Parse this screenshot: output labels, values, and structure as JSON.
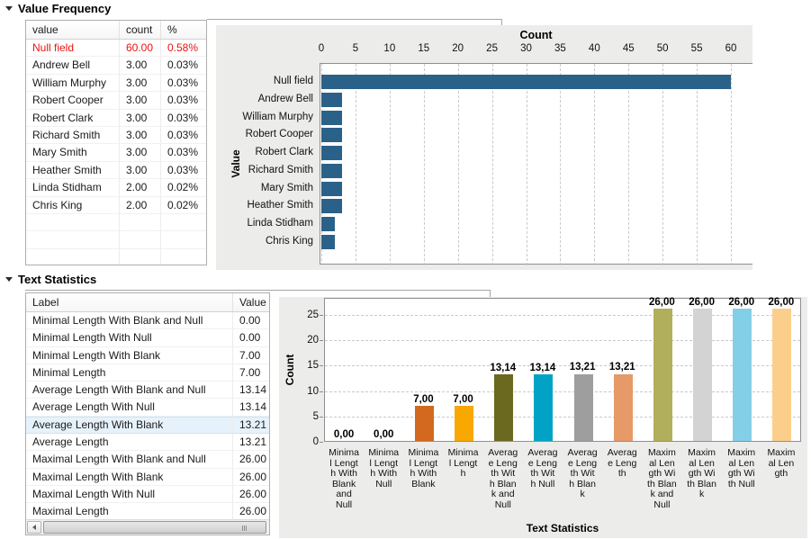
{
  "colors": {
    "null_field_text": "#ee1111",
    "selection_bg": "#e6f2fb",
    "selection_border": "#cbe4f7",
    "chart_bg": "#ececea",
    "plot_border": "#8f8f8f",
    "value_frequency_bar": "#2a6189"
  },
  "icons": {
    "section_collapse": "triangle-down-icon",
    "scrollbar_left": "arrow-left-icon"
  },
  "value_frequency": {
    "section_title": "Value Frequency",
    "table": {
      "headers": [
        "value",
        "count",
        "%"
      ],
      "rows": [
        {
          "value": "Null field",
          "count": "60.00",
          "pct": "0.58%",
          "null_field": true
        },
        {
          "value": "Andrew Bell",
          "count": "3.00",
          "pct": "0.03%",
          "null_field": false
        },
        {
          "value": "William Murphy",
          "count": "3.00",
          "pct": "0.03%",
          "null_field": false
        },
        {
          "value": "Robert Cooper",
          "count": "3.00",
          "pct": "0.03%",
          "null_field": false
        },
        {
          "value": "Robert Clark",
          "count": "3.00",
          "pct": "0.03%",
          "null_field": false
        },
        {
          "value": "Richard Smith",
          "count": "3.00",
          "pct": "0.03%",
          "null_field": false
        },
        {
          "value": "Mary Smith",
          "count": "3.00",
          "pct": "0.03%",
          "null_field": false
        },
        {
          "value": "Heather Smith",
          "count": "3.00",
          "pct": "0.03%",
          "null_field": false
        },
        {
          "value": "Linda Stidham",
          "count": "2.00",
          "pct": "0.02%",
          "null_field": false
        },
        {
          "value": "Chris King",
          "count": "2.00",
          "pct": "0.02%",
          "null_field": false
        }
      ],
      "empty_row_count": 3
    }
  },
  "text_statistics": {
    "section_title": "Text Statistics",
    "table": {
      "headers": [
        "Label",
        "Value"
      ],
      "rows": [
        {
          "label": "Minimal Length With Blank and Null",
          "value": "0.00",
          "selected": false
        },
        {
          "label": "Minimal Length With Null",
          "value": "0.00",
          "selected": false
        },
        {
          "label": "Minimal Length With Blank",
          "value": "7.00",
          "selected": false
        },
        {
          "label": "Minimal Length",
          "value": "7.00",
          "selected": false
        },
        {
          "label": "Average Length With Blank and Null",
          "value": "13.14",
          "selected": false
        },
        {
          "label": "Average Length With Null",
          "value": "13.14",
          "selected": false
        },
        {
          "label": "Average Length With Blank",
          "value": "13.21",
          "selected": true
        },
        {
          "label": "Average Length",
          "value": "13.21",
          "selected": false
        },
        {
          "label": "Maximal Length With Blank and Null",
          "value": "26.00",
          "selected": false
        },
        {
          "label": "Maximal Length With Blank",
          "value": "26.00",
          "selected": false
        },
        {
          "label": "Maximal Length With Null",
          "value": "26.00",
          "selected": false
        },
        {
          "label": "Maximal Length",
          "value": "26.00",
          "selected": false
        }
      ]
    }
  },
  "chart_data": [
    {
      "type": "bar",
      "orientation": "horizontal",
      "title": "Count",
      "ylabel": "Value",
      "categories": [
        "Null field",
        "Andrew Bell",
        "William Murphy",
        "Robert Cooper",
        "Robert Clark",
        "Richard Smith",
        "Mary Smith",
        "Heather Smith",
        "Linda Stidham",
        "Chris King"
      ],
      "values": [
        60,
        3,
        3,
        3,
        3,
        3,
        3,
        3,
        2,
        2
      ],
      "xlim": [
        0,
        60
      ],
      "x_ticks": [
        0,
        5,
        10,
        15,
        20,
        25,
        30,
        35,
        40,
        45,
        50,
        55,
        60
      ],
      "grid": "vertical-dashed",
      "legend": "none",
      "bar_color": "#2a6189"
    },
    {
      "type": "bar",
      "orientation": "vertical",
      "xlabel": "Text Statistics",
      "ylabel": "Count",
      "categories": [
        "Minimal Length With Blank and Null",
        "Minimal Length With Null",
        "Minimal Length With Blank",
        "Minimal Length",
        "Average Length With Blank and Null",
        "Average Length With Null",
        "Average Length With Blank",
        "Average Length",
        "Maximal Length With Blank and Null",
        "Maximal Length With Blank",
        "Maximal Length With Null",
        "Maximal Length"
      ],
      "tick_labels_wrapped": [
        "Minima\nl Lengt\nh With\nBlank\nand\nNull",
        "Minima\nl Lengt\nh With\nNull",
        "Minima\nl Lengt\nh With\nBlank",
        "Minima\nl Lengt\nh",
        "Averag\ne Leng\nth Wit\nh Blan\nk and\nNull",
        "Averag\ne Leng\nth Wit\nh Null",
        "Averag\ne Leng\nth Wit\nh Blan\nk",
        "Averag\ne Leng\nth",
        "Maxim\nal Len\ngth Wi\nth Blan\nk and\nNull",
        "Maxim\nal Len\ngth Wi\nth Blan\nk",
        "Maxim\nal Len\ngth Wi\nth Null",
        "Maxim\nal Len\ngth"
      ],
      "values": [
        0,
        0,
        7,
        7,
        13.14,
        13.14,
        13.21,
        13.21,
        26,
        26,
        26,
        26
      ],
      "value_labels": [
        "0,00",
        "0,00",
        "7,00",
        "7,00",
        "13,14",
        "13,14",
        "13,21",
        "13,21",
        "26,00",
        "26,00",
        "26,00",
        "26,00"
      ],
      "bar_colors": [
        "#c9c9c9",
        "#c9c9c9",
        "#d2691e",
        "#f8a800",
        "#6b6820",
        "#00a3c6",
        "#9e9e9e",
        "#e59a67",
        "#b2af5c",
        "#d3d3d3",
        "#84cfe8",
        "#fbcf8b"
      ],
      "ylim": [
        0,
        28
      ],
      "y_ticks": [
        0,
        5,
        10,
        15,
        20,
        25
      ],
      "grid": "horizontal-dashed",
      "legend": "none"
    }
  ]
}
